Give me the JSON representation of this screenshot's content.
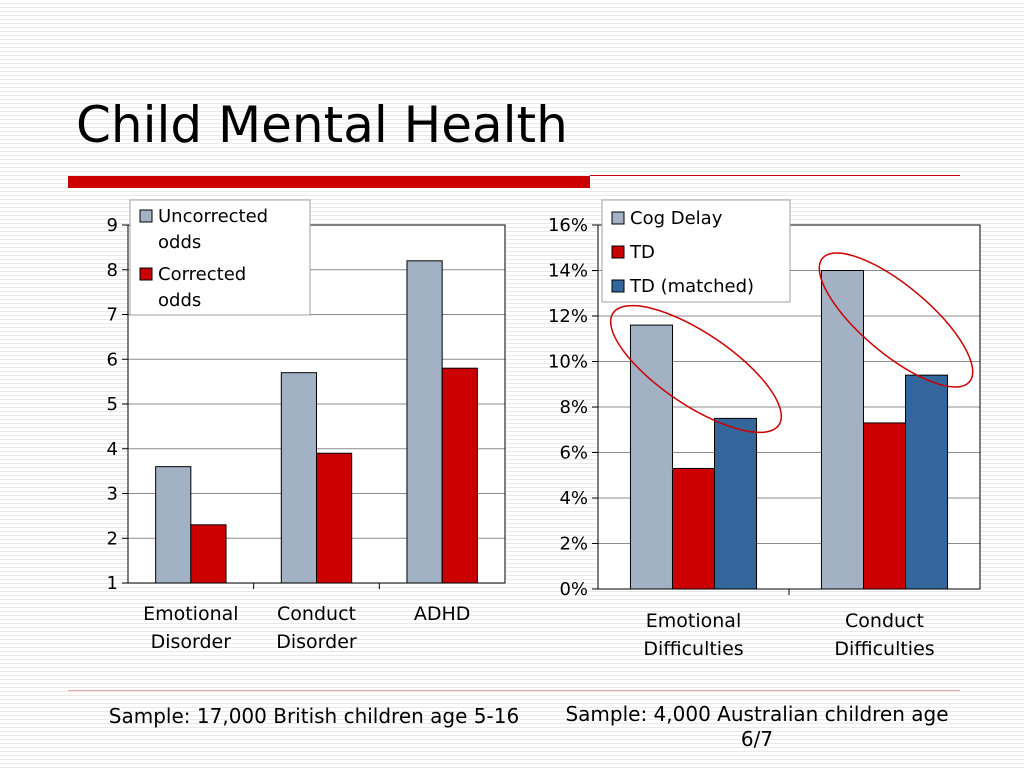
{
  "slide": {
    "title": "Child Mental Health",
    "caption_left": "Sample: 17,000 British children age 5-16",
    "caption_right": "Sample: 4,000 Australian children age 6/7"
  },
  "colors": {
    "gray": "#a2b1c3",
    "red": "#cc0000",
    "blue": "#33669a",
    "ellipse": "#cc0000",
    "accent": "#cc0000"
  },
  "chart_data": [
    {
      "type": "bar",
      "categories": [
        [
          "Emotional",
          "Disorder"
        ],
        [
          "Conduct",
          "Disorder"
        ],
        [
          "ADHD"
        ]
      ],
      "series": [
        {
          "name": "Uncorrected odds",
          "values": [
            3.6,
            5.7,
            8.2
          ],
          "color": "#a2b1c3"
        },
        {
          "name": "Corrected odds",
          "values": [
            2.3,
            3.9,
            5.8
          ],
          "color": "#cc0000"
        }
      ],
      "ylim": [
        1,
        9
      ],
      "yticks": [
        "1",
        "2",
        "3",
        "4",
        "5",
        "6",
        "7",
        "8",
        "9"
      ],
      "grid": true,
      "legend": "top-left",
      "legend_entries": [
        [
          "Uncorrected",
          "odds"
        ],
        [
          "Corrected",
          "odds"
        ]
      ]
    },
    {
      "type": "bar",
      "categories": [
        [
          "Emotional",
          "Difficulties"
        ],
        [
          "Conduct",
          "Difficulties"
        ]
      ],
      "series": [
        {
          "name": "Cog Delay",
          "values": [
            11.6,
            14.0
          ],
          "color": "#a2b1c3"
        },
        {
          "name": "TD",
          "values": [
            5.3,
            7.3
          ],
          "color": "#cc0000"
        },
        {
          "name": "TD (matched)",
          "values": [
            7.5,
            9.4
          ],
          "color": "#33669a"
        }
      ],
      "ylim": [
        0,
        16
      ],
      "yticks": [
        "0%",
        "2%",
        "4%",
        "6%",
        "8%",
        "10%",
        "12%",
        "14%",
        "16%"
      ],
      "grid": true,
      "legend": "top-right",
      "legend_entries": [
        [
          "Cog Delay"
        ],
        [
          "TD"
        ],
        [
          "TD (matched)"
        ]
      ],
      "annotations": "ellipses around Cog Delay and TD (matched) bars in each group"
    }
  ]
}
